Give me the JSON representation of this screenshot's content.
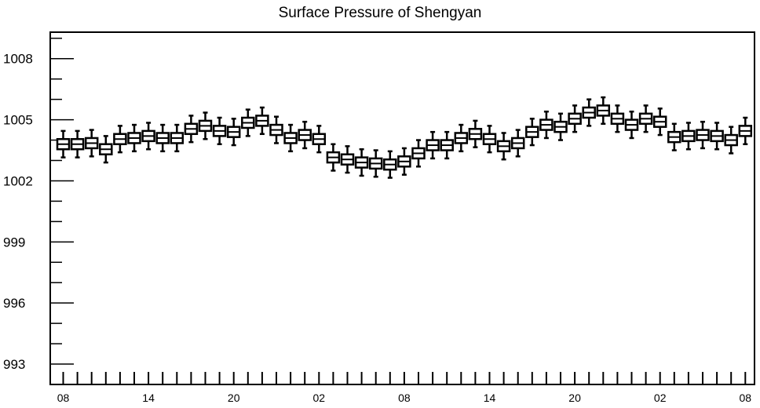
{
  "chart_data": {
    "type": "box",
    "title": "Surface Pressure of Shengyan",
    "xlabel": "",
    "ylabel": "",
    "ylim": [
      992,
      1009.3
    ],
    "yticks": [
      993,
      996,
      999,
      1002,
      1005,
      1008
    ],
    "y_tick_labels": [
      "993",
      "996",
      "999",
      "1002",
      "1005",
      "1008"
    ],
    "x_tick_labels": [
      "08",
      "14",
      "20",
      "02",
      "08",
      "14",
      "20",
      "02",
      "08"
    ],
    "x_tick_label_steps": [
      0,
      6,
      12,
      18,
      24,
      30,
      36,
      42,
      48
    ],
    "step_hours": 1,
    "median": [
      1003.8,
      1003.8,
      1003.85,
      1003.55,
      1004.05,
      1004.1,
      1004.2,
      1004.1,
      1004.1,
      1004.55,
      1004.7,
      1004.45,
      1004.4,
      1004.85,
      1004.95,
      1004.5,
      1004.1,
      1004.25,
      1004.05,
      1003.15,
      1003.05,
      1002.9,
      1002.85,
      1002.8,
      1002.95,
      1003.35,
      1003.75,
      1003.75,
      1004.1,
      1004.3,
      1004.05,
      1003.7,
      1003.85,
      1004.4,
      1004.75,
      1004.65,
      1005.05,
      1005.35,
      1005.45,
      1005.05,
      1004.75,
      1005.05,
      1004.9,
      1004.15,
      1004.2,
      1004.25,
      1004.2,
      1004.0,
      1004.45
    ],
    "box_half_range": 0.25,
    "whisker_half_range": 0.65,
    "grid": false
  }
}
